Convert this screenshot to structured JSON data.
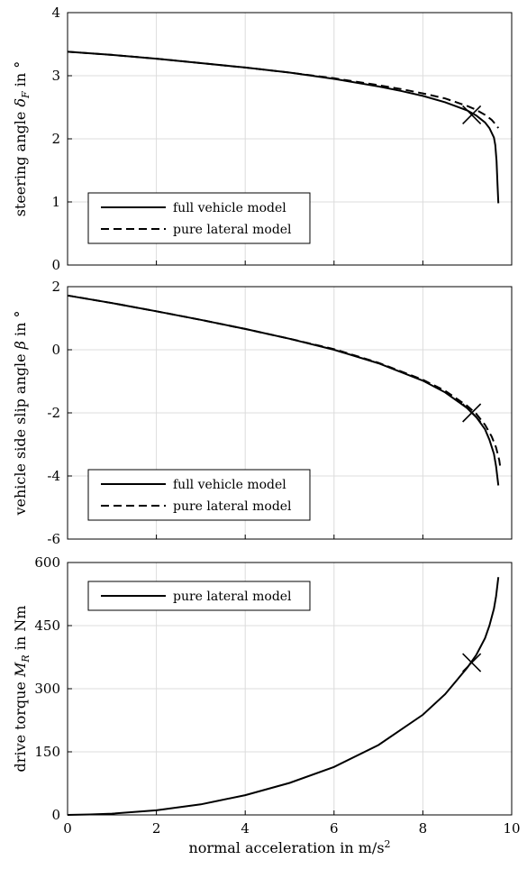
{
  "chart_data": [
    {
      "type": "line",
      "ylabel": "steering angle δ_F in °",
      "xlim": [
        0,
        10
      ],
      "ylim": [
        0,
        4
      ],
      "xticks": [
        "0",
        "2",
        "4",
        "6",
        "8",
        "10"
      ],
      "yticks": [
        "0",
        "1",
        "2",
        "3",
        "4"
      ],
      "grid": true,
      "legend": "bottom-left",
      "series": [
        {
          "name": "full vehicle model",
          "style": "solid",
          "x": [
            0,
            1,
            2,
            3,
            4,
            5,
            6,
            7,
            7.5,
            8,
            8.5,
            9,
            9.2,
            9.4,
            9.5,
            9.6,
            9.63,
            9.66,
            9.68,
            9.7
          ],
          "y": [
            3.38,
            3.33,
            3.27,
            3.2,
            3.13,
            3.05,
            2.95,
            2.83,
            2.76,
            2.68,
            2.58,
            2.45,
            2.37,
            2.26,
            2.17,
            2.02,
            1.9,
            1.65,
            1.3,
            0.98
          ]
        },
        {
          "name": "pure lateral model",
          "style": "dashed",
          "x": [
            0,
            1,
            2,
            3,
            4,
            5,
            6,
            7,
            7.5,
            8,
            8.5,
            9,
            9.2,
            9.4,
            9.55,
            9.65,
            9.7
          ],
          "y": [
            3.38,
            3.33,
            3.27,
            3.2,
            3.13,
            3.05,
            2.96,
            2.85,
            2.79,
            2.72,
            2.64,
            2.52,
            2.46,
            2.38,
            2.3,
            2.22,
            2.17
          ]
        }
      ],
      "marker": {
        "shape": "x",
        "x": 9.1,
        "y": 2.38
      }
    },
    {
      "type": "line",
      "ylabel": "vehicle side slip angle β in °",
      "xlim": [
        0,
        10
      ],
      "ylim": [
        -6,
        2
      ],
      "xticks": [
        "0",
        "2",
        "4",
        "6",
        "8",
        "10"
      ],
      "yticks": [
        "-6",
        "-4",
        "-2",
        "0",
        "2"
      ],
      "grid": true,
      "legend": "bottom-left",
      "series": [
        {
          "name": "full vehicle model",
          "style": "solid",
          "x": [
            0,
            1,
            2,
            3,
            4,
            5,
            6,
            7,
            8,
            8.5,
            9,
            9.2,
            9.4,
            9.5,
            9.6,
            9.65,
            9.7
          ],
          "y": [
            1.72,
            1.48,
            1.22,
            0.95,
            0.66,
            0.35,
            0.0,
            -0.43,
            -0.98,
            -1.35,
            -1.85,
            -2.13,
            -2.52,
            -2.85,
            -3.3,
            -3.7,
            -4.3
          ]
        },
        {
          "name": "pure lateral model",
          "style": "dashed",
          "x": [
            0,
            1,
            2,
            3,
            4,
            5,
            6,
            7,
            8,
            8.5,
            9,
            9.2,
            9.4,
            9.55,
            9.65,
            9.72,
            9.75
          ],
          "y": [
            1.72,
            1.48,
            1.22,
            0.95,
            0.66,
            0.35,
            0.02,
            -0.41,
            -0.95,
            -1.3,
            -1.78,
            -2.03,
            -2.38,
            -2.75,
            -3.1,
            -3.5,
            -3.8
          ]
        }
      ],
      "marker": {
        "shape": "x",
        "x": 9.1,
        "y": -2.0
      }
    },
    {
      "type": "line",
      "ylabel": "drive torque M_R in Nm",
      "xlabel": "normal acceleration in m/s²",
      "xlim": [
        0,
        10
      ],
      "ylim": [
        0,
        600
      ],
      "xticks": [
        "0",
        "2",
        "4",
        "6",
        "8",
        "10"
      ],
      "yticks": [
        "0",
        "150",
        "300",
        "450",
        "600"
      ],
      "grid": true,
      "legend": "top-left",
      "series": [
        {
          "name": "pure lateral model",
          "style": "solid",
          "x": [
            0,
            0.5,
            1,
            2,
            3,
            4,
            5,
            6,
            7,
            8,
            8.5,
            9,
            9.2,
            9.4,
            9.5,
            9.6,
            9.65,
            9.7
          ],
          "y": [
            0,
            1,
            3,
            11,
            25,
            47,
            76,
            114,
            166,
            238,
            287,
            350,
            380,
            420,
            450,
            490,
            520,
            565
          ]
        }
      ],
      "marker": {
        "shape": "x",
        "x": 9.1,
        "y": 362
      }
    }
  ]
}
